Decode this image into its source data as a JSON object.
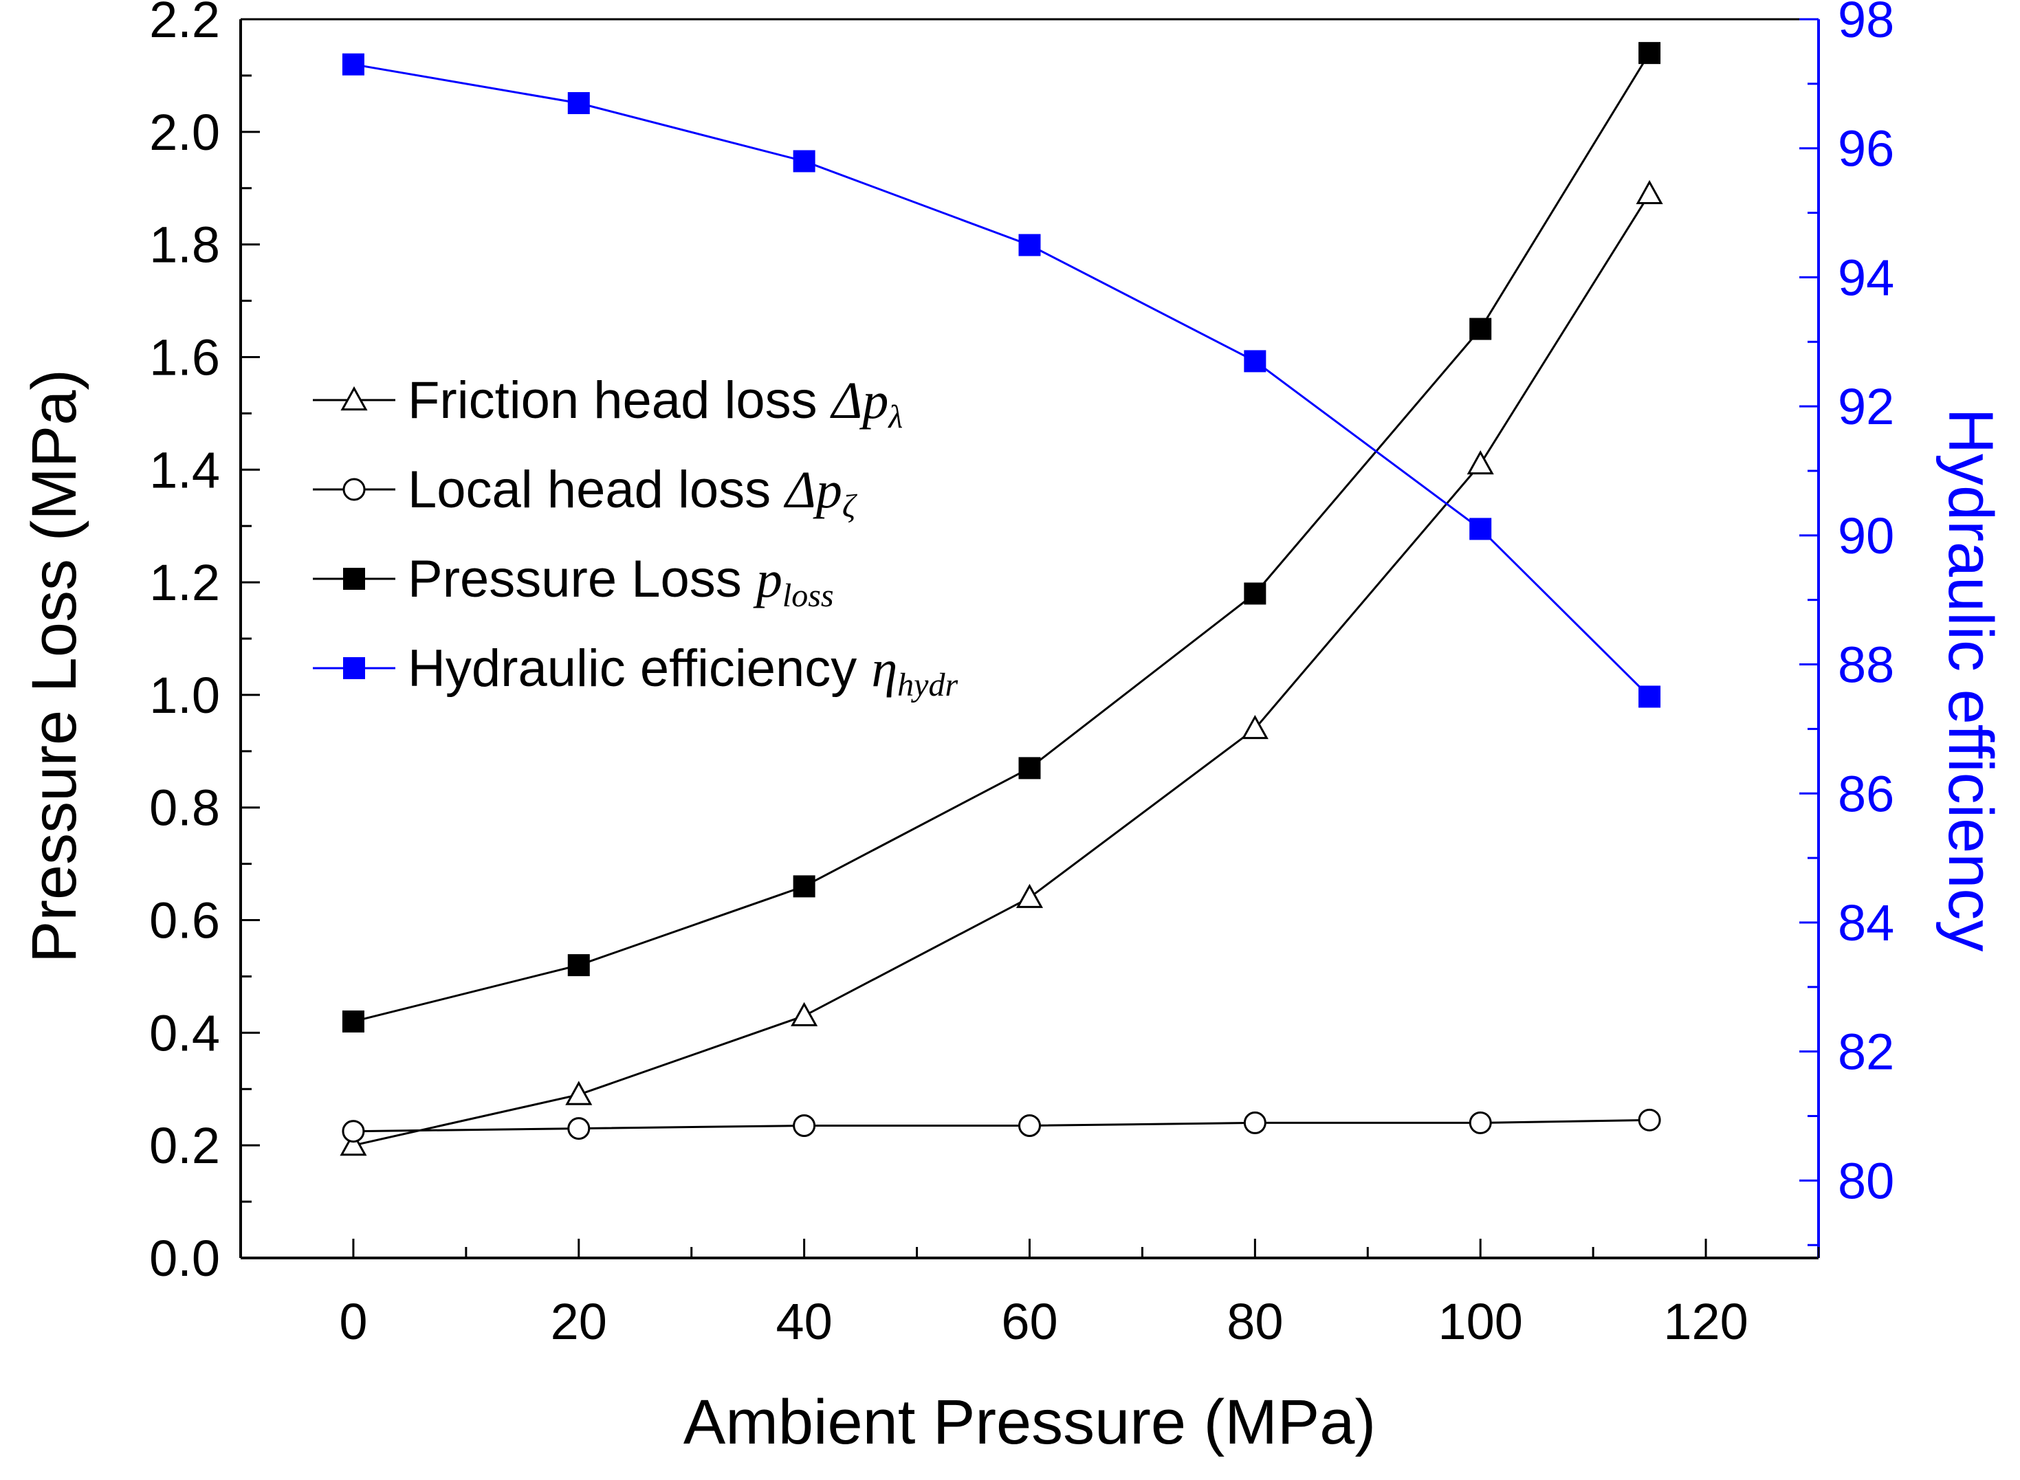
{
  "chart_data": {
    "type": "line",
    "title": "",
    "xlabel": "Ambient Pressure (MPa)",
    "ylabel": "Pressure Loss (MPa)",
    "y2label": "Hydraulic efficiency",
    "xlim": [
      -10,
      130
    ],
    "ylim": [
      0,
      2.2
    ],
    "y2lim": [
      78.8,
      98
    ],
    "xticks": [
      0,
      20,
      40,
      60,
      80,
      100,
      120
    ],
    "yticks": [
      0.0,
      0.2,
      0.4,
      0.6,
      0.8,
      1.0,
      1.2,
      1.4,
      1.6,
      1.8,
      2.0,
      2.2
    ],
    "y2ticks": [
      80,
      82,
      84,
      86,
      88,
      90,
      92,
      94,
      96,
      98
    ],
    "xtick_labels": [
      "0",
      "20",
      "40",
      "60",
      "80",
      "100",
      "120"
    ],
    "ytick_labels": [
      "0.0",
      "0.2",
      "0.4",
      "0.6",
      "0.8",
      "1.0",
      "1.2",
      "1.4",
      "1.6",
      "1.8",
      "2.0",
      "2.2"
    ],
    "y2tick_labels": [
      "80",
      "82",
      "84",
      "86",
      "88",
      "90",
      "92",
      "94",
      "96",
      "98"
    ],
    "x": [
      0,
      20,
      40,
      60,
      80,
      100,
      115
    ],
    "legend_position": "center-left",
    "colors": {
      "black": "#000000",
      "blue": "#0000ff"
    },
    "series": [
      {
        "name": "Friction head loss",
        "symbol": "Δp",
        "subscript": "λ",
        "axis": "left",
        "marker": "open-triangle",
        "color": "#000000",
        "values": [
          0.2,
          0.29,
          0.43,
          0.64,
          0.94,
          1.41,
          1.89
        ]
      },
      {
        "name": "Local head loss",
        "symbol": "Δp",
        "subscript": "ζ",
        "axis": "left",
        "marker": "open-circle",
        "color": "#000000",
        "values": [
          0.225,
          0.23,
          0.235,
          0.235,
          0.24,
          0.24,
          0.245
        ]
      },
      {
        "name": "Pressure Loss",
        "symbol": "p",
        "subscript": "loss",
        "axis": "left",
        "marker": "filled-square",
        "color": "#000000",
        "values": [
          0.42,
          0.52,
          0.66,
          0.87,
          1.18,
          1.65,
          2.14
        ]
      },
      {
        "name": "Hydraulic efficiency",
        "symbol": "η",
        "subscript": "hydr",
        "axis": "right",
        "marker": "filled-square",
        "color": "#0000ff",
        "values": [
          97.3,
          96.7,
          95.8,
          94.5,
          92.7,
          90.1,
          87.5
        ]
      }
    ]
  }
}
